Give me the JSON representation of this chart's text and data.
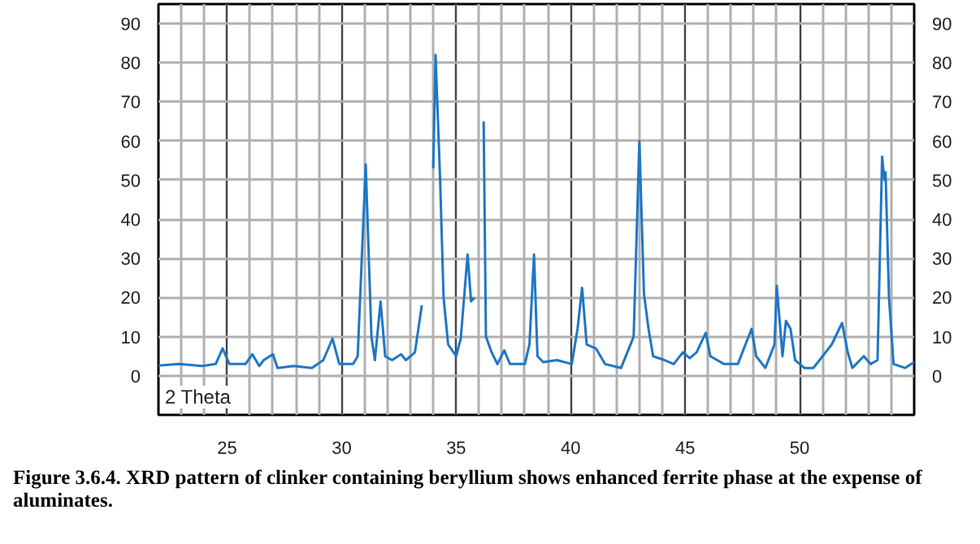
{
  "chart_data": {
    "type": "line",
    "xlabel": "2 Theta",
    "annotations": [
      "Figure 3.6.4. XRD pattern of clinker containing beryllium shows enhanced ferrite phase at the expense of aluminates."
    ],
    "xlim": [
      22,
      55
    ],
    "xticks": [
      25,
      30,
      35,
      40,
      45,
      50
    ],
    "ylim": [
      -10,
      95
    ],
    "yticks": [
      0,
      10,
      20,
      30,
      40,
      50,
      60,
      70,
      80,
      90
    ],
    "y2lim": [
      -10,
      95
    ],
    "y2ticks": [
      0,
      10,
      20,
      30,
      40,
      50,
      60,
      70,
      80,
      90
    ],
    "grid": true,
    "marker": "none",
    "line_style": "solid",
    "series": [
      {
        "color": "#1f77c4",
        "x": [
          22.0,
          22.9,
          23.9,
          24.5,
          24.8,
          25.1,
          25.8,
          26.1,
          26.4,
          26.6,
          27.0,
          27.2,
          27.9,
          28.7,
          29.2,
          29.6,
          29.9,
          30.5,
          30.7,
          31.05,
          31.3,
          31.45,
          31.7,
          31.9,
          32.2,
          32.6,
          32.8,
          33.2,
          33.5,
          33.6,
          33.8,
          34.0,
          34.1,
          34.3,
          34.45,
          34.65,
          35.0,
          35.2,
          35.5,
          35.65,
          35.8,
          35.95,
          36.1,
          36.2,
          36.3,
          36.55,
          36.8,
          37.1,
          37.35,
          38.0,
          38.2,
          38.4,
          38.55,
          38.8,
          39.4,
          40.05,
          40.3,
          40.5,
          40.7,
          41.1,
          41.5,
          42.2,
          42.75,
          43.0,
          43.2,
          43.4,
          43.6,
          44.1,
          44.5,
          44.9,
          45.2,
          45.5,
          45.9,
          46.1,
          46.7,
          47.3,
          47.9,
          48.1,
          48.5,
          48.9,
          49.0,
          49.25,
          49.4,
          49.6,
          49.8,
          50.2,
          50.6,
          51.0,
          51.4,
          51.85,
          52.1,
          52.3,
          52.8,
          53.1,
          53.4,
          53.6,
          53.7,
          53.75,
          53.9,
          54.1,
          54.6,
          55.0
        ],
        "values": [
          2.6,
          3,
          2.5,
          3,
          7,
          3,
          3,
          5.5,
          2.5,
          4,
          5.5,
          2,
          2.5,
          2,
          4,
          9.5,
          3,
          3,
          5,
          54,
          10,
          4,
          19,
          5,
          4,
          5.5,
          4,
          6,
          18,
          null,
          null,
          53,
          82,
          50,
          20,
          8,
          5,
          9.5,
          31,
          19,
          20,
          null,
          null,
          65,
          10,
          6,
          3,
          6.5,
          3,
          3,
          8,
          31,
          5,
          3.5,
          4,
          3,
          12,
          22.5,
          8,
          7,
          3,
          2,
          10,
          60,
          21,
          12,
          5,
          4,
          3,
          6,
          4.5,
          6,
          11,
          5,
          3,
          3,
          12,
          5,
          2,
          8,
          23,
          5,
          14,
          12,
          4,
          2,
          2,
          5,
          8,
          13.5,
          6,
          2,
          5,
          3,
          4,
          56,
          50,
          52,
          20,
          3,
          2,
          3.5
        ]
      }
    ]
  }
}
